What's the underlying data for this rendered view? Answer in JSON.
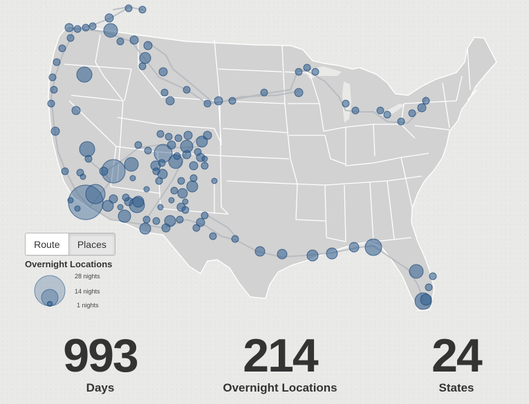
{
  "view_toggle": {
    "route_label": "Route",
    "places_label": "Places",
    "active": "Places"
  },
  "legend": {
    "title": "Overnight Locations",
    "sizes": [
      {
        "label": "28 nights",
        "nights": 28
      },
      {
        "label": "14 nights",
        "nights": 14
      },
      {
        "label": "1 nights",
        "nights": 1
      }
    ]
  },
  "stats": [
    {
      "value": "993",
      "label": "Days"
    },
    {
      "value": "214",
      "label": "Overnight Locations"
    },
    {
      "value": "24",
      "label": "States"
    }
  ],
  "map": {
    "region": "Contiguous United States",
    "land_color": "#d2d2d2",
    "border_color": "#ffffff",
    "route_color": "#b4b9be",
    "marker_fill": "#2e5d8e",
    "marker_dark": "#1f4a7a"
  }
}
